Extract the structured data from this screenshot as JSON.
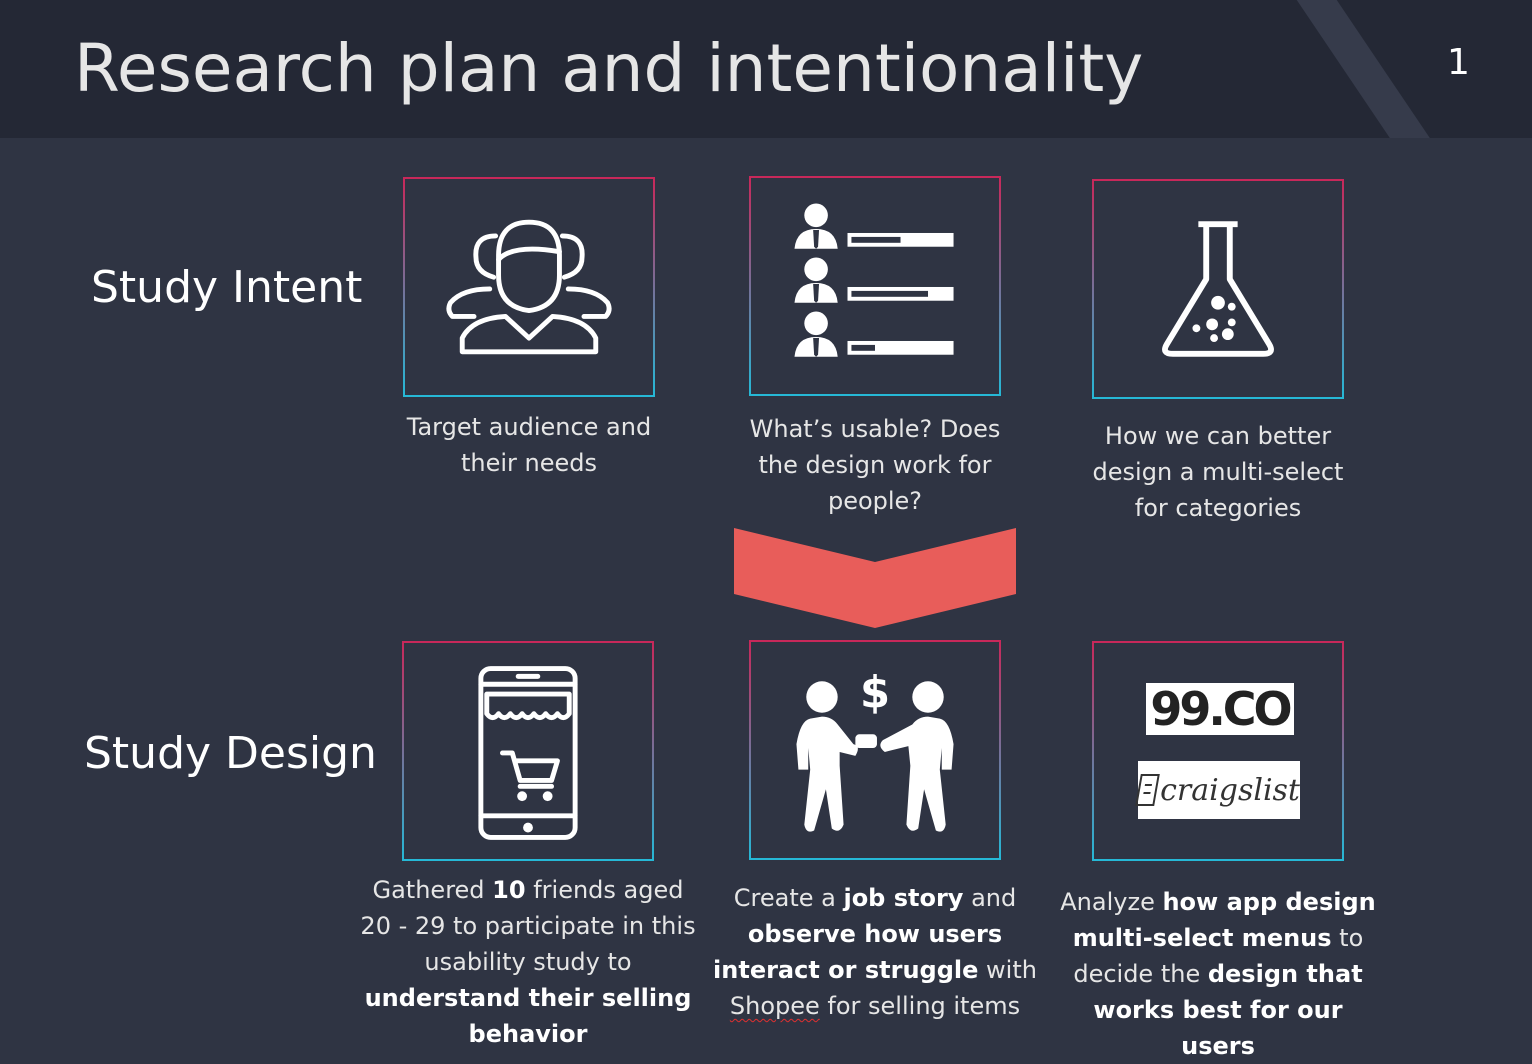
{
  "header": {
    "title": "Research plan and intentionality",
    "page_number": "1"
  },
  "rows": {
    "intent_label": "Study Intent",
    "design_label": "Study Design"
  },
  "intent": [
    {
      "icon": "audience-icon",
      "caption_lines": [
        "Target audience and",
        "their needs"
      ]
    },
    {
      "icon": "user-rating-list-icon",
      "caption_lines": [
        "What’s usable? Does",
        "the design work for",
        "people?"
      ]
    },
    {
      "icon": "lab-flask-icon",
      "caption_lines": [
        "How we can better",
        "design a multi-select",
        "for categories"
      ]
    }
  ],
  "design": [
    {
      "icon": "shopping-phone-icon",
      "caption": {
        "l1a": "Gathered ",
        "l1b": "10",
        "l1c": " friends aged",
        "l2": "20 - 29 to participate in this",
        "l3": "usability study to",
        "l4": "understand their selling",
        "l5": "behavior"
      }
    },
    {
      "icon": "transaction-icon",
      "caption": {
        "l1a": "Create a ",
        "l1b": "job story",
        "l1c": " and",
        "l2": "observe how users",
        "l3a": "interact or struggle",
        "l3b": " with",
        "l4a": "Shopee",
        "l4b": " for selling items"
      }
    },
    {
      "icon": "competitor-logos",
      "logos": [
        "99.CO",
        "craigslist"
      ],
      "caption": {
        "l1a": "Analyze ",
        "l1b": "how app design",
        "l2a": "multi-select menus",
        "l2b": " to",
        "l3a": "decide the ",
        "l3b": "design that",
        "l4": "works best for our users"
      }
    }
  ],
  "colors": {
    "background": "#2f3443",
    "header": "#242835",
    "arrow": "#e85d5a",
    "border_top": "#c8285a",
    "border_bottom": "#26b8d6"
  }
}
